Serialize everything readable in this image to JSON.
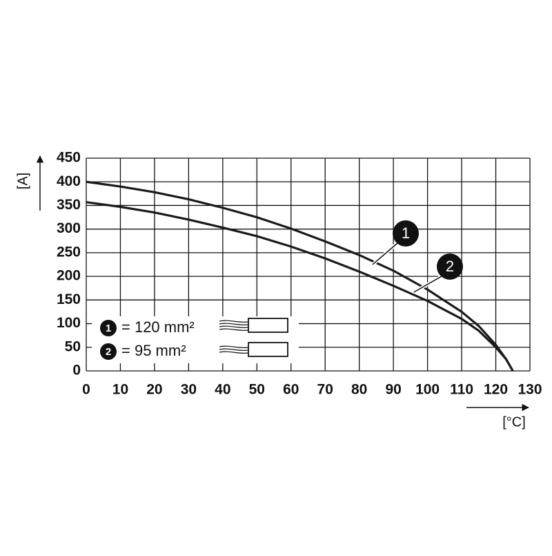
{
  "chart_data": {
    "type": "line",
    "x_label": "[°C]",
    "y_label": "[A]",
    "xlim": [
      0,
      130
    ],
    "xticks": [
      0,
      10,
      20,
      30,
      40,
      50,
      60,
      70,
      80,
      90,
      100,
      110,
      120,
      130
    ],
    "ylim": [
      0,
      450
    ],
    "yticks": [
      0,
      50,
      100,
      150,
      200,
      250,
      300,
      350,
      400,
      450
    ],
    "grid": true,
    "x": [
      0,
      10,
      20,
      30,
      40,
      50,
      60,
      70,
      80,
      90,
      100,
      110,
      115,
      120,
      123,
      125
    ],
    "series": [
      {
        "name": "= 120 mm²",
        "marker": "1",
        "color": "#1a1a1a",
        "values": [
          400,
          390,
          378,
          363,
          345,
          325,
          301,
          274,
          245,
          212,
          172,
          125,
          95,
          55,
          25,
          0
        ]
      },
      {
        "name": "= 95 mm²",
        "marker": "2",
        "color": "#1a1a1a",
        "values": [
          357,
          347,
          335,
          320,
          303,
          285,
          263,
          238,
          210,
          180,
          148,
          110,
          85,
          50,
          25,
          0
        ]
      }
    ]
  }
}
